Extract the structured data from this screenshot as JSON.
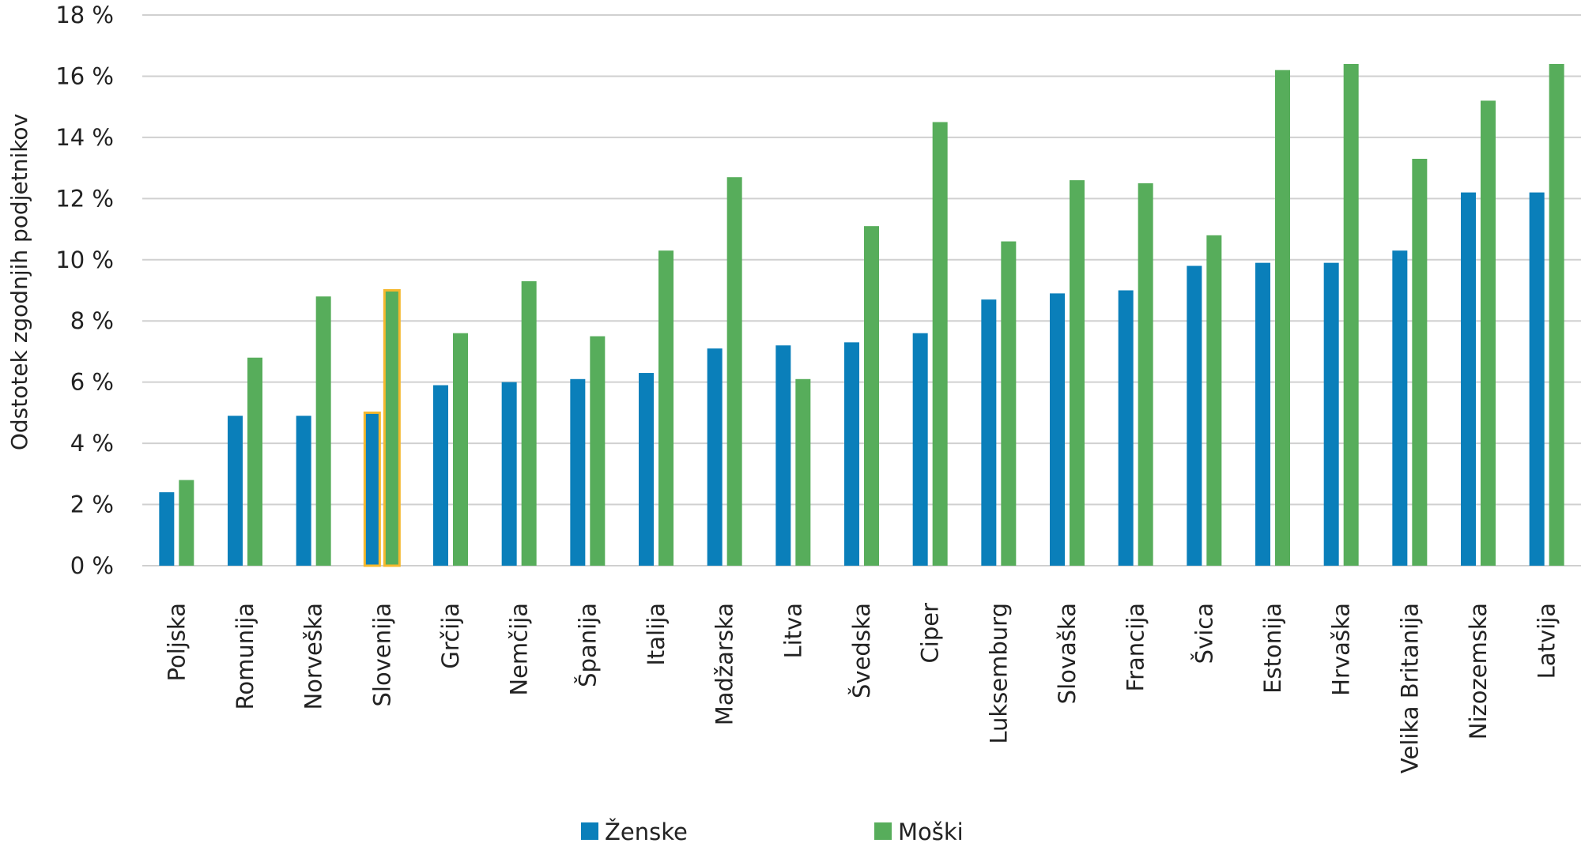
{
  "chart_data": {
    "type": "bar",
    "ylabel": "Odstotek zgodnjih podjetnikov",
    "ylim": [
      0,
      18
    ],
    "y_ticks": [
      0,
      2,
      4,
      6,
      8,
      10,
      12,
      14,
      16,
      18
    ],
    "y_tick_labels": [
      "0 %",
      "2 %",
      "4 %",
      "6 %",
      "8 %",
      "10 %",
      "12 %",
      "14 %",
      "16 %",
      "18 %"
    ],
    "categories": [
      "Poljska",
      "Romunija",
      "Norveška",
      "Slovenija",
      "Grčija",
      "Nemčija",
      "Španija",
      "Italija",
      "Madžarska",
      "Litva",
      "Švedska",
      "Ciper",
      "Luksemburg",
      "Slovaška",
      "Francija",
      "Švica",
      "Estonija",
      "Hrvaška",
      "Velika Britanija",
      "Nizozemska",
      "Latvija"
    ],
    "series": [
      {
        "name": "Ženske",
        "color": "#0a7fba",
        "values": [
          2.4,
          4.9,
          4.9,
          5.0,
          5.9,
          6.0,
          6.1,
          6.3,
          7.1,
          7.2,
          7.3,
          7.6,
          8.7,
          8.9,
          9.0,
          9.8,
          9.9,
          9.9,
          10.3,
          12.2,
          12.2
        ]
      },
      {
        "name": "Moški",
        "color": "#57ad5b",
        "values": [
          2.8,
          6.8,
          8.8,
          9.0,
          7.6,
          9.3,
          7.5,
          10.3,
          12.7,
          6.1,
          11.1,
          14.5,
          10.6,
          12.6,
          12.5,
          10.8,
          16.2,
          16.4,
          13.3,
          15.2,
          16.4
        ]
      }
    ],
    "highlight_category": "Slovenija",
    "highlight_color": "#f5b82e",
    "grid": true,
    "legend_position": "bottom"
  }
}
